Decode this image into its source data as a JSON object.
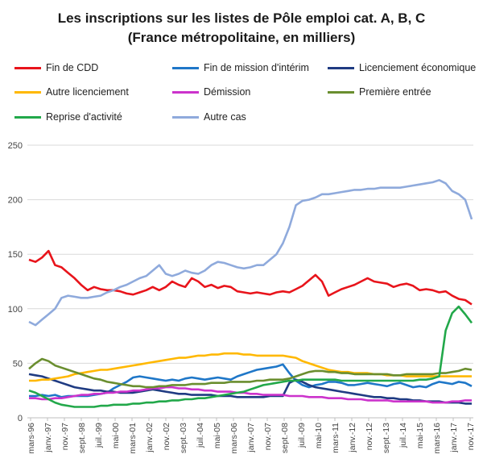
{
  "chart_data": {
    "type": "line",
    "title": "Les inscriptions sur les listes de Pôle emploi cat. A, B, C",
    "subtitle": "(France métropolitaine, en milliers)",
    "xlabel": "",
    "ylabel": "",
    "ylim": [
      0,
      250
    ],
    "yticks": [
      0,
      50,
      100,
      150,
      200,
      250
    ],
    "grid": true,
    "legend_position": "top",
    "xtick_labels": [
      "mars-96",
      "janv.-97",
      "nov.-97",
      "sept.-98",
      "juil.-99",
      "mai-00",
      "mars-01",
      "janv.-02",
      "nov.-02",
      "sept.-03",
      "juil.-04",
      "mai-05",
      "mars-06",
      "janv.-07",
      "nov.-07",
      "sept.-08",
      "juil.-09",
      "mai-10",
      "mars-11",
      "janv.-12",
      "nov.-12",
      "sept.-13",
      "juil.-14",
      "mai-15",
      "mars-16",
      "janv.-17",
      "nov.-17"
    ],
    "series": [
      {
        "name": "Fin de CDD",
        "color": "#e8141b",
        "values": [
          145,
          143,
          147,
          153,
          140,
          138,
          133,
          128,
          122,
          117,
          120,
          118,
          117,
          117,
          116,
          114,
          113,
          115,
          117,
          120,
          117,
          120,
          125,
          122,
          120,
          128,
          125,
          120,
          122,
          119,
          121,
          120,
          116,
          115,
          114,
          115,
          114,
          113,
          115,
          116,
          115,
          118,
          121,
          126,
          131,
          125,
          112,
          115,
          118,
          120,
          122,
          125,
          128,
          125,
          124,
          123,
          120,
          122,
          123,
          121,
          117,
          118,
          117,
          115,
          116,
          112,
          109,
          108,
          104
        ]
      },
      {
        "name": "Fin de mission d'intérim",
        "color": "#1f77c8",
        "values": [
          20,
          20,
          21,
          20,
          21,
          19,
          20,
          20,
          20,
          20,
          21,
          22,
          23,
          27,
          30,
          33,
          37,
          38,
          37,
          36,
          35,
          34,
          35,
          34,
          36,
          37,
          36,
          35,
          36,
          37,
          36,
          35,
          38,
          40,
          42,
          44,
          45,
          46,
          47,
          49,
          41,
          34,
          30,
          28,
          30,
          31,
          33,
          33,
          32,
          30,
          30,
          31,
          32,
          31,
          30,
          29,
          31,
          32,
          30,
          28,
          29,
          28,
          31,
          33,
          32,
          31,
          33,
          32,
          29
        ]
      },
      {
        "name": "Licenciement économique",
        "color": "#1f3b82",
        "values": [
          40,
          39,
          38,
          36,
          34,
          32,
          30,
          28,
          27,
          26,
          25,
          25,
          24,
          24,
          23,
          23,
          23,
          24,
          25,
          26,
          25,
          24,
          23,
          22,
          22,
          21,
          21,
          21,
          21,
          20,
          20,
          20,
          19,
          19,
          19,
          19,
          19,
          20,
          20,
          20,
          32,
          35,
          33,
          30,
          28,
          27,
          26,
          25,
          24,
          23,
          22,
          21,
          20,
          19,
          19,
          18,
          18,
          17,
          17,
          16,
          16,
          15,
          15,
          15,
          14,
          14,
          14,
          13,
          13
        ]
      },
      {
        "name": "Autre licenciement",
        "color": "#ffb800",
        "values": [
          34,
          34,
          35,
          35,
          36,
          37,
          38,
          40,
          41,
          42,
          43,
          44,
          44,
          45,
          46,
          47,
          48,
          49,
          50,
          51,
          52,
          53,
          54,
          55,
          55,
          56,
          57,
          57,
          58,
          58,
          59,
          59,
          59,
          58,
          58,
          57,
          57,
          57,
          57,
          57,
          56,
          55,
          52,
          50,
          48,
          46,
          44,
          43,
          42,
          42,
          41,
          41,
          41,
          40,
          40,
          39,
          39,
          39,
          38,
          38,
          38,
          38,
          38,
          38,
          38,
          38,
          38,
          38,
          38
        ]
      },
      {
        "name": "Démission",
        "color": "#cc33cc",
        "values": [
          18,
          18,
          17,
          17,
          18,
          18,
          19,
          20,
          21,
          21,
          22,
          22,
          23,
          23,
          24,
          24,
          25,
          25,
          26,
          27,
          27,
          28,
          28,
          27,
          27,
          26,
          26,
          25,
          25,
          24,
          24,
          24,
          23,
          23,
          22,
          22,
          21,
          21,
          21,
          21,
          20,
          20,
          20,
          19,
          19,
          19,
          18,
          18,
          18,
          17,
          17,
          17,
          16,
          16,
          16,
          16,
          15,
          15,
          15,
          15,
          15,
          15,
          14,
          14,
          14,
          15,
          15,
          16,
          16
        ]
      },
      {
        "name": "Première entrée",
        "color": "#6a8e2f",
        "values": [
          45,
          50,
          54,
          52,
          48,
          46,
          44,
          42,
          40,
          38,
          36,
          35,
          33,
          32,
          31,
          30,
          29,
          29,
          28,
          28,
          29,
          29,
          30,
          30,
          30,
          31,
          31,
          31,
          32,
          32,
          32,
          33,
          33,
          33,
          33,
          34,
          34,
          35,
          35,
          35,
          36,
          38,
          40,
          42,
          43,
          43,
          42,
          42,
          41,
          41,
          40,
          40,
          40,
          40,
          40,
          40,
          39,
          39,
          40,
          40,
          40,
          40,
          40,
          41,
          41,
          42,
          43,
          45,
          44
        ]
      },
      {
        "name": "Reprise d'activité",
        "color": "#22a84a",
        "values": [
          25,
          23,
          20,
          17,
          14,
          12,
          11,
          10,
          10,
          10,
          10,
          11,
          11,
          12,
          12,
          12,
          13,
          13,
          14,
          14,
          15,
          15,
          16,
          16,
          17,
          17,
          18,
          18,
          19,
          20,
          21,
          22,
          23,
          24,
          26,
          28,
          30,
          31,
          32,
          33,
          34,
          34,
          35,
          35,
          35,
          35,
          35,
          35,
          34,
          34,
          34,
          34,
          34,
          34,
          34,
          34,
          34,
          34,
          34,
          34,
          35,
          35,
          36,
          38,
          80,
          96,
          102,
          95,
          87
        ]
      },
      {
        "name": "Autre cas",
        "color": "#8faadc",
        "values": [
          88,
          85,
          90,
          95,
          100,
          110,
          112,
          111,
          110,
          110,
          111,
          112,
          115,
          117,
          120,
          122,
          125,
          128,
          130,
          135,
          140,
          132,
          130,
          132,
          135,
          133,
          132,
          135,
          140,
          143,
          142,
          140,
          138,
          137,
          138,
          140,
          140,
          145,
          150,
          160,
          175,
          195,
          199,
          200,
          202,
          205,
          205,
          206,
          207,
          208,
          209,
          209,
          210,
          210,
          211,
          211,
          211,
          211,
          212,
          213,
          214,
          215,
          216,
          218,
          215,
          208,
          205,
          200,
          182
        ]
      }
    ]
  }
}
